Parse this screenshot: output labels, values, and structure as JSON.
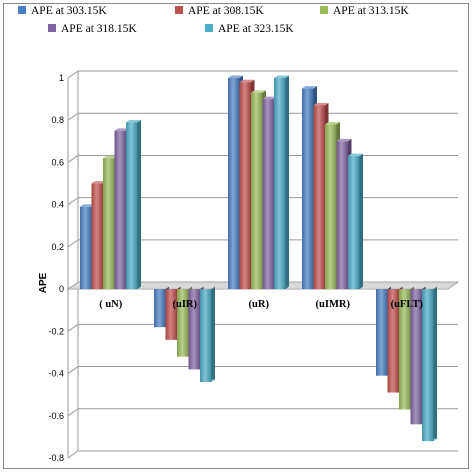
{
  "chart_data": {
    "type": "bar",
    "title": "",
    "xlabel": "",
    "ylabel": "APE",
    "ylim": [
      -0.8,
      1.0
    ],
    "yticks": [
      -0.8,
      -0.6,
      -0.4,
      -0.2,
      0,
      0.2,
      0.4,
      0.6,
      0.8,
      1
    ],
    "ytick_labels": [
      "-0.8",
      "-0.6",
      "-0.4",
      "-0.2",
      "0",
      "0.2",
      "0.4",
      "0.6",
      "0.8",
      "1"
    ],
    "grid": true,
    "legend_position": "top",
    "categories": [
      "( uN)",
      "(uIR)",
      "(uR)",
      "(uIMR)",
      "(uFLT)"
    ],
    "series": [
      {
        "name": "APE at 303.15K",
        "color": "#4a7ec3",
        "values": [
          0.39,
          -0.18,
          1.0,
          0.95,
          -0.41
        ]
      },
      {
        "name": "APE at 308.15K",
        "color": "#c0504d",
        "values": [
          0.5,
          -0.24,
          0.98,
          0.87,
          -0.49
        ]
      },
      {
        "name": "APE at 313.15K",
        "color": "#9bbb59",
        "values": [
          0.62,
          -0.32,
          0.93,
          0.78,
          -0.57
        ]
      },
      {
        "name": "APE at 318.15K",
        "color": "#8064a2",
        "values": [
          0.75,
          -0.38,
          0.9,
          0.7,
          -0.64
        ]
      },
      {
        "name": "APE at 323.15K",
        "color": "#4bacc6",
        "values": [
          0.79,
          -0.44,
          1.0,
          0.63,
          -0.72
        ]
      }
    ]
  }
}
